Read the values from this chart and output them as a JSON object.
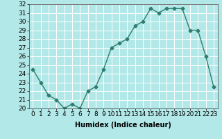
{
  "x": [
    0,
    1,
    2,
    3,
    4,
    5,
    6,
    7,
    8,
    9,
    10,
    11,
    12,
    13,
    14,
    15,
    16,
    17,
    18,
    19,
    20,
    21,
    22,
    23
  ],
  "y": [
    24.5,
    23.0,
    21.5,
    21.0,
    20.0,
    20.5,
    20.0,
    22.0,
    22.5,
    24.5,
    27.0,
    27.5,
    28.0,
    29.5,
    30.0,
    31.5,
    31.0,
    31.5,
    31.5,
    31.5,
    29.0,
    29.0,
    26.0,
    22.5
  ],
  "title": "",
  "xlabel": "Humidex (Indice chaleur)",
  "ylabel": "",
  "xlim": [
    -0.5,
    23.5
  ],
  "ylim": [
    20,
    32
  ],
  "yticks": [
    20,
    21,
    22,
    23,
    24,
    25,
    26,
    27,
    28,
    29,
    30,
    31,
    32
  ],
  "xticks": [
    0,
    1,
    2,
    3,
    4,
    5,
    6,
    7,
    8,
    9,
    10,
    11,
    12,
    13,
    14,
    15,
    16,
    17,
    18,
    19,
    20,
    21,
    22,
    23
  ],
  "line_color": "#2e7d6e",
  "marker": "D",
  "marker_size": 2.5,
  "bg_color": "#b3e8e8",
  "grid_color": "#ffffff",
  "label_fontsize": 7,
  "tick_fontsize": 6.5
}
